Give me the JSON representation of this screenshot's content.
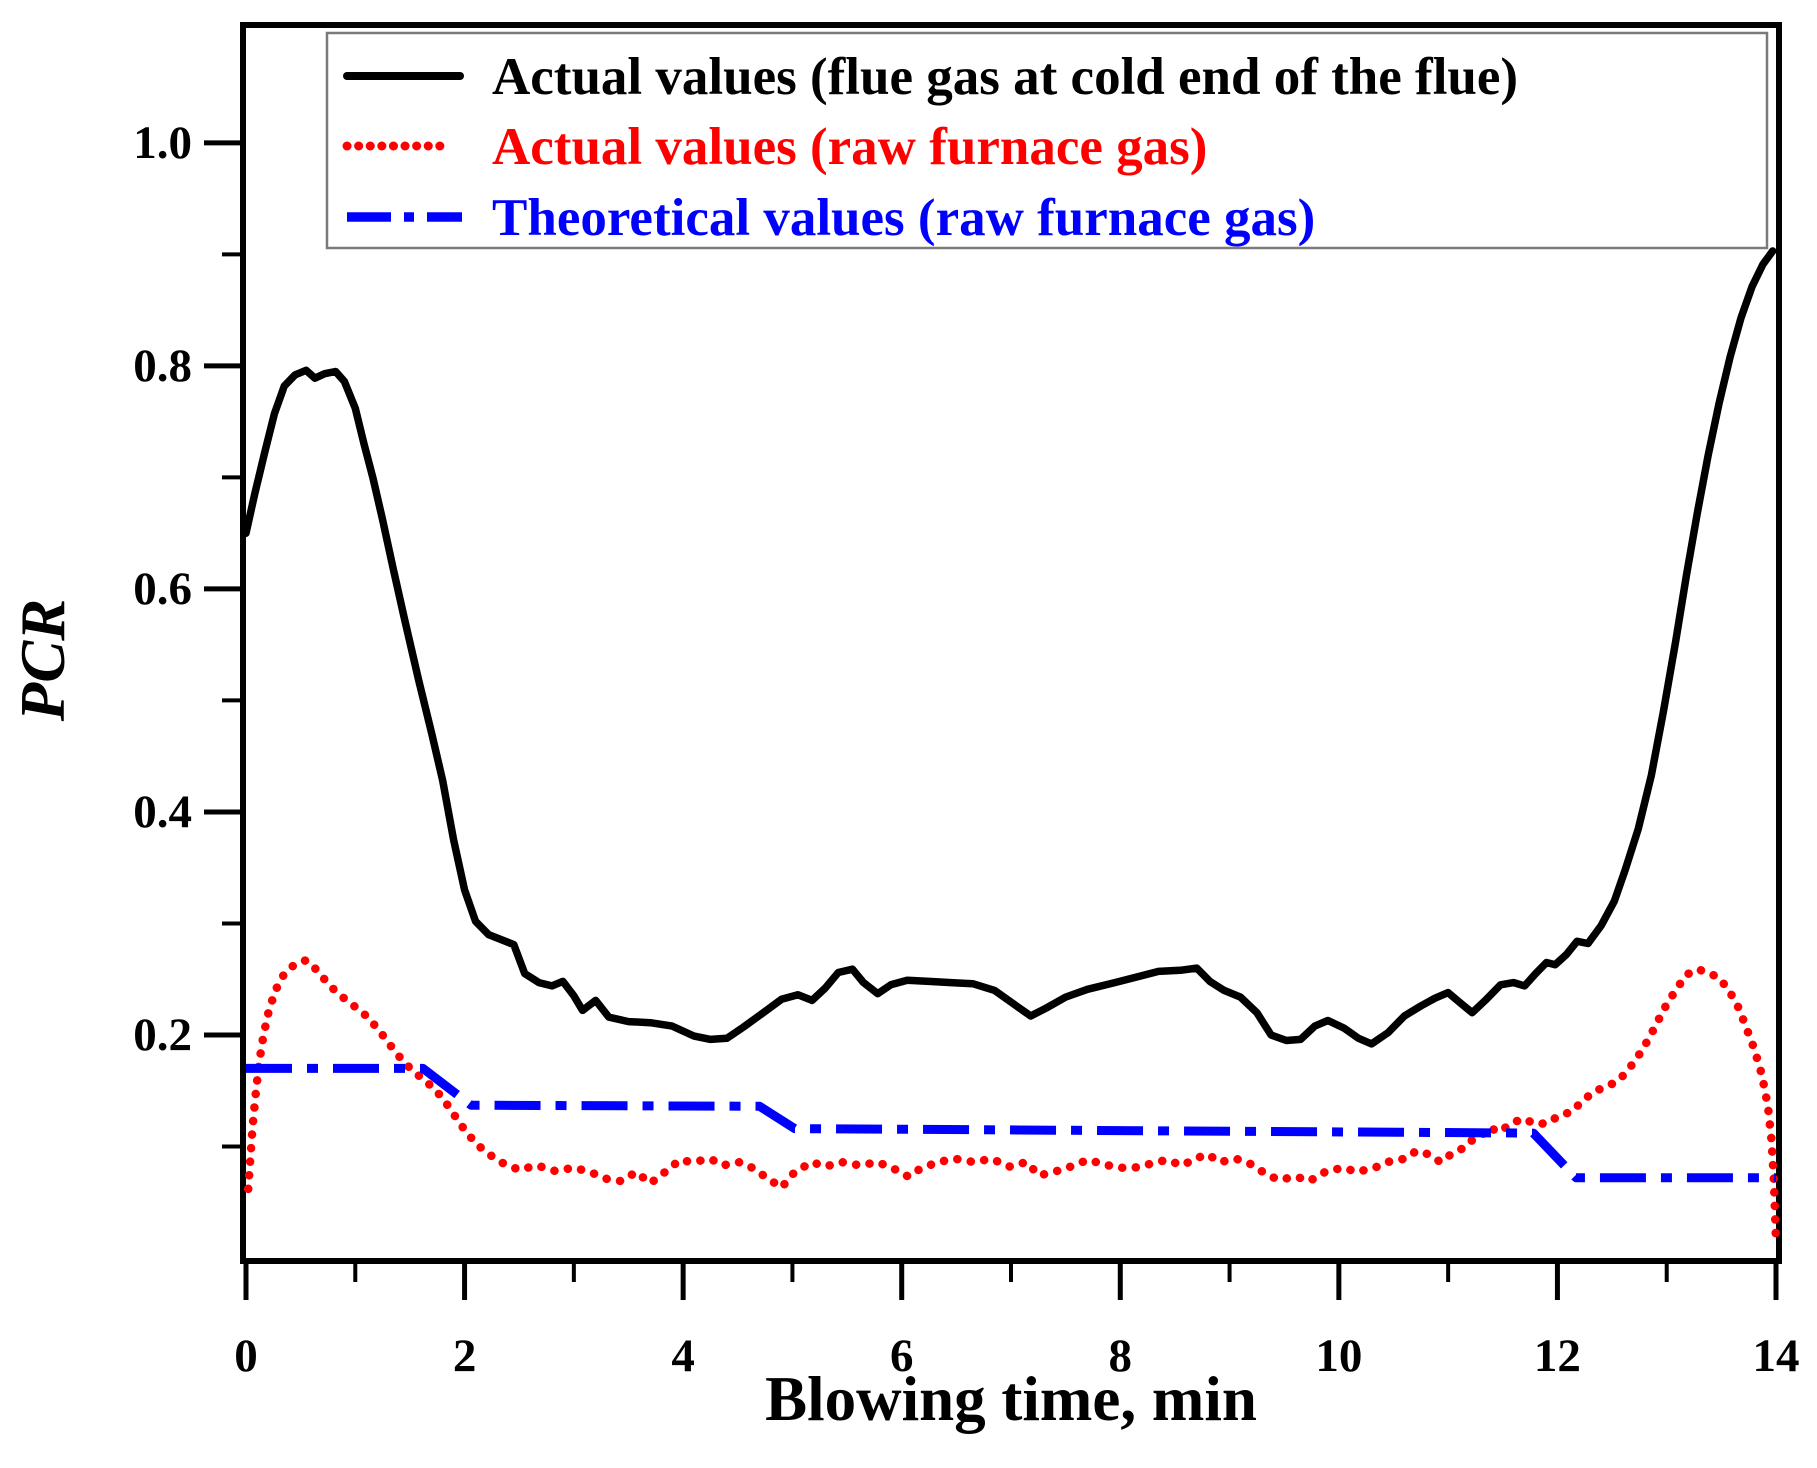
{
  "figure": {
    "background": "#ffffff",
    "xlabel": "Blowing time, min",
    "ylabel": "PCR"
  },
  "legend": {
    "position": "upper-left-inside",
    "entries": [
      {
        "label": "Actual values (flue gas at cold end of the flue)",
        "color": "#000000",
        "style": "solid"
      },
      {
        "label": "Actual values (raw furnace gas)",
        "color": "#ff0000",
        "style": "dotted"
      },
      {
        "label": "Theoretical values (raw furnace gas)",
        "color": "#0000ff",
        "style": "dashdot"
      }
    ]
  },
  "chart_data": {
    "type": "line",
    "title": "",
    "xlabel": "Blowing time, min",
    "ylabel": "PCR",
    "xlim": [
      0,
      14
    ],
    "ylim": [
      0,
      1.103
    ],
    "grid": false,
    "x_ticks_major": [
      0,
      2,
      4,
      6,
      8,
      10,
      12,
      14
    ],
    "x_ticks_minor": [
      1,
      3,
      5,
      7,
      9,
      11,
      13
    ],
    "y_ticks_major": [
      0.2,
      0.4,
      0.6,
      0.8,
      1.0
    ],
    "y_ticks_minor": [
      0.1,
      0.3,
      0.5,
      0.7,
      0.9
    ],
    "legend_position": "upper left",
    "series": [
      {
        "name": "Actual values (flue gas at cold end of the flue)",
        "color": "#000000",
        "style": "solid",
        "points": [
          [
            0,
            0.65
          ],
          [
            0.08,
            0.685
          ],
          [
            0.17,
            0.722
          ],
          [
            0.26,
            0.757
          ],
          [
            0.35,
            0.782
          ],
          [
            0.45,
            0.792
          ],
          [
            0.55,
            0.796
          ],
          [
            0.63,
            0.789
          ],
          [
            0.72,
            0.793
          ],
          [
            0.82,
            0.795
          ],
          [
            0.9,
            0.786
          ],
          [
            1.0,
            0.762
          ],
          [
            1.08,
            0.73
          ],
          [
            1.16,
            0.7
          ],
          [
            1.25,
            0.662
          ],
          [
            1.35,
            0.617
          ],
          [
            1.45,
            0.573
          ],
          [
            1.58,
            0.518
          ],
          [
            1.7,
            0.47
          ],
          [
            1.8,
            0.428
          ],
          [
            1.9,
            0.375
          ],
          [
            2.0,
            0.33
          ],
          [
            2.1,
            0.302
          ],
          [
            2.22,
            0.29
          ],
          [
            2.35,
            0.285
          ],
          [
            2.45,
            0.281
          ],
          [
            2.55,
            0.255
          ],
          [
            2.68,
            0.247
          ],
          [
            2.8,
            0.244
          ],
          [
            2.9,
            0.248
          ],
          [
            3.0,
            0.235
          ],
          [
            3.08,
            0.222
          ],
          [
            3.2,
            0.231
          ],
          [
            3.32,
            0.216
          ],
          [
            3.5,
            0.212
          ],
          [
            3.7,
            0.211
          ],
          [
            3.9,
            0.208
          ],
          [
            4.1,
            0.199
          ],
          [
            4.25,
            0.196
          ],
          [
            4.4,
            0.197
          ],
          [
            4.55,
            0.207
          ],
          [
            4.72,
            0.219
          ],
          [
            4.9,
            0.232
          ],
          [
            5.05,
            0.236
          ],
          [
            5.18,
            0.231
          ],
          [
            5.3,
            0.242
          ],
          [
            5.42,
            0.256
          ],
          [
            5.55,
            0.259
          ],
          [
            5.65,
            0.247
          ],
          [
            5.78,
            0.237
          ],
          [
            5.9,
            0.245
          ],
          [
            6.05,
            0.249
          ],
          [
            6.25,
            0.248
          ],
          [
            6.45,
            0.247
          ],
          [
            6.65,
            0.246
          ],
          [
            6.85,
            0.24
          ],
          [
            7.05,
            0.226
          ],
          [
            7.18,
            0.217
          ],
          [
            7.32,
            0.224
          ],
          [
            7.5,
            0.234
          ],
          [
            7.7,
            0.241
          ],
          [
            7.95,
            0.247
          ],
          [
            8.15,
            0.252
          ],
          [
            8.35,
            0.257
          ],
          [
            8.55,
            0.258
          ],
          [
            8.7,
            0.26
          ],
          [
            8.82,
            0.248
          ],
          [
            8.95,
            0.24
          ],
          [
            9.1,
            0.234
          ],
          [
            9.25,
            0.22
          ],
          [
            9.38,
            0.2
          ],
          [
            9.52,
            0.195
          ],
          [
            9.65,
            0.196
          ],
          [
            9.78,
            0.208
          ],
          [
            9.9,
            0.213
          ],
          [
            10.05,
            0.206
          ],
          [
            10.18,
            0.197
          ],
          [
            10.3,
            0.192
          ],
          [
            10.45,
            0.202
          ],
          [
            10.6,
            0.217
          ],
          [
            10.75,
            0.226
          ],
          [
            10.88,
            0.233
          ],
          [
            11.0,
            0.238
          ],
          [
            11.12,
            0.228
          ],
          [
            11.22,
            0.22
          ],
          [
            11.35,
            0.232
          ],
          [
            11.48,
            0.245
          ],
          [
            11.6,
            0.247
          ],
          [
            11.7,
            0.244
          ],
          [
            11.8,
            0.255
          ],
          [
            11.9,
            0.265
          ],
          [
            11.98,
            0.263
          ],
          [
            12.08,
            0.272
          ],
          [
            12.18,
            0.284
          ],
          [
            12.28,
            0.282
          ],
          [
            12.4,
            0.298
          ],
          [
            12.52,
            0.32
          ],
          [
            12.62,
            0.348
          ],
          [
            12.74,
            0.385
          ],
          [
            12.86,
            0.433
          ],
          [
            12.97,
            0.49
          ],
          [
            13.08,
            0.552
          ],
          [
            13.18,
            0.612
          ],
          [
            13.28,
            0.668
          ],
          [
            13.38,
            0.72
          ],
          [
            13.48,
            0.767
          ],
          [
            13.58,
            0.808
          ],
          [
            13.68,
            0.843
          ],
          [
            13.78,
            0.871
          ],
          [
            13.88,
            0.891
          ],
          [
            13.97,
            0.903
          ]
        ]
      },
      {
        "name": "Actual values (raw furnace gas)",
        "color": "#ff0000",
        "style": "dotted",
        "points": [
          [
            0.02,
            0.062
          ],
          [
            0.04,
            0.09
          ],
          [
            0.06,
            0.118
          ],
          [
            0.09,
            0.148
          ],
          [
            0.12,
            0.175
          ],
          [
            0.16,
            0.2
          ],
          [
            0.21,
            0.222
          ],
          [
            0.27,
            0.24
          ],
          [
            0.33,
            0.252
          ],
          [
            0.4,
            0.26
          ],
          [
            0.48,
            0.265
          ],
          [
            0.55,
            0.267
          ],
          [
            0.62,
            0.261
          ],
          [
            0.7,
            0.252
          ],
          [
            0.78,
            0.243
          ],
          [
            0.87,
            0.235
          ],
          [
            0.96,
            0.228
          ],
          [
            1.06,
            0.221
          ],
          [
            1.15,
            0.212
          ],
          [
            1.25,
            0.2
          ],
          [
            1.35,
            0.187
          ],
          [
            1.45,
            0.175
          ],
          [
            1.55,
            0.166
          ],
          [
            1.65,
            0.158
          ],
          [
            1.73,
            0.151
          ],
          [
            1.81,
            0.142
          ],
          [
            1.9,
            0.129
          ],
          [
            2.0,
            0.115
          ],
          [
            2.1,
            0.103
          ],
          [
            2.21,
            0.094
          ],
          [
            2.33,
            0.086
          ],
          [
            2.5,
            0.079
          ],
          [
            2.66,
            0.083
          ],
          [
            2.83,
            0.078
          ],
          [
            3.0,
            0.081
          ],
          [
            3.15,
            0.077
          ],
          [
            3.3,
            0.071
          ],
          [
            3.43,
            0.069
          ],
          [
            3.57,
            0.077
          ],
          [
            3.7,
            0.067
          ],
          [
            3.86,
            0.079
          ],
          [
            3.97,
            0.088
          ],
          [
            4.08,
            0.086
          ],
          [
            4.25,
            0.089
          ],
          [
            4.36,
            0.083
          ],
          [
            4.52,
            0.086
          ],
          [
            4.63,
            0.081
          ],
          [
            4.78,
            0.071
          ],
          [
            4.9,
            0.063
          ],
          [
            5.02,
            0.077
          ],
          [
            5.18,
            0.086
          ],
          [
            5.3,
            0.082
          ],
          [
            5.45,
            0.086
          ],
          [
            5.62,
            0.083
          ],
          [
            5.78,
            0.086
          ],
          [
            5.95,
            0.079
          ],
          [
            6.06,
            0.073
          ],
          [
            6.17,
            0.08
          ],
          [
            6.33,
            0.086
          ],
          [
            6.49,
            0.089
          ],
          [
            6.66,
            0.086
          ],
          [
            6.82,
            0.089
          ],
          [
            6.99,
            0.082
          ],
          [
            7.14,
            0.086
          ],
          [
            7.26,
            0.074
          ],
          [
            7.42,
            0.078
          ],
          [
            7.58,
            0.083
          ],
          [
            7.7,
            0.088
          ],
          [
            7.82,
            0.085
          ],
          [
            7.97,
            0.081
          ],
          [
            8.13,
            0.081
          ],
          [
            8.3,
            0.085
          ],
          [
            8.42,
            0.088
          ],
          [
            8.57,
            0.083
          ],
          [
            8.68,
            0.089
          ],
          [
            8.8,
            0.093
          ],
          [
            8.91,
            0.086
          ],
          [
            9.06,
            0.089
          ],
          [
            9.18,
            0.085
          ],
          [
            9.34,
            0.075
          ],
          [
            9.45,
            0.07
          ],
          [
            9.61,
            0.073
          ],
          [
            9.73,
            0.069
          ],
          [
            9.89,
            0.078
          ],
          [
            10.05,
            0.081
          ],
          [
            10.16,
            0.077
          ],
          [
            10.33,
            0.081
          ],
          [
            10.44,
            0.086
          ],
          [
            10.6,
            0.089
          ],
          [
            10.71,
            0.096
          ],
          [
            10.82,
            0.093
          ],
          [
            10.93,
            0.086
          ],
          [
            11.04,
            0.094
          ],
          [
            11.15,
            0.099
          ],
          [
            11.21,
            0.105
          ],
          [
            11.31,
            0.11
          ],
          [
            11.37,
            0.117
          ],
          [
            11.47,
            0.113
          ],
          [
            11.58,
            0.121
          ],
          [
            11.69,
            0.125
          ],
          [
            11.8,
            0.12
          ],
          [
            11.91,
            0.121
          ],
          [
            12.02,
            0.128
          ],
          [
            12.13,
            0.131
          ],
          [
            12.24,
            0.142
          ],
          [
            12.35,
            0.15
          ],
          [
            12.46,
            0.154
          ],
          [
            12.57,
            0.16
          ],
          [
            12.68,
            0.173
          ],
          [
            12.78,
            0.187
          ],
          [
            12.88,
            0.205
          ],
          [
            12.98,
            0.224
          ],
          [
            13.08,
            0.24
          ],
          [
            13.18,
            0.254
          ],
          [
            13.28,
            0.259
          ],
          [
            13.38,
            0.256
          ],
          [
            13.48,
            0.251
          ],
          [
            13.57,
            0.24
          ],
          [
            13.66,
            0.224
          ],
          [
            13.73,
            0.206
          ],
          [
            13.8,
            0.188
          ],
          [
            13.86,
            0.168
          ],
          [
            13.9,
            0.15
          ],
          [
            13.93,
            0.133
          ],
          [
            13.96,
            0.105
          ],
          [
            13.98,
            0.07
          ],
          [
            14.0,
            0.015
          ]
        ]
      },
      {
        "name": "Theoretical values (raw furnace gas)",
        "color": "#0000ff",
        "style": "dashdot",
        "points": [
          [
            0,
            0.17
          ],
          [
            1.62,
            0.17
          ],
          [
            2.06,
            0.137
          ],
          [
            4.7,
            0.136
          ],
          [
            5.02,
            0.116
          ],
          [
            11.78,
            0.112
          ],
          [
            12.17,
            0.072
          ],
          [
            14.0,
            0.072
          ]
        ]
      }
    ]
  }
}
